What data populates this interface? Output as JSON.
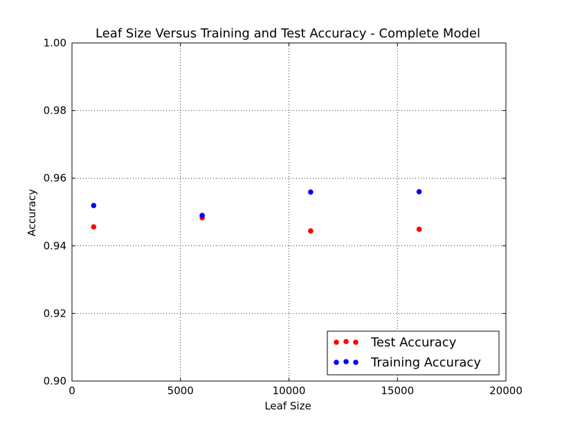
{
  "chart_data": {
    "type": "scatter",
    "title": "Leaf Size Versus Training and Test Accuracy - Complete Model",
    "xlabel": "Leaf Size",
    "ylabel": "Accuracy",
    "xlim": [
      0,
      20000
    ],
    "ylim": [
      0.9,
      1.0
    ],
    "x_ticks": [
      0,
      5000,
      10000,
      15000,
      20000
    ],
    "x_tick_labels": [
      "0",
      "5000",
      "10000",
      "15000",
      "20000"
    ],
    "y_ticks": [
      0.9,
      0.92,
      0.94,
      0.96,
      0.98,
      1.0
    ],
    "y_tick_labels": [
      "0.90",
      "0.92",
      "0.94",
      "0.96",
      "0.98",
      "1.00"
    ],
    "grid": true,
    "legend_position": "bottom-right",
    "series": [
      {
        "name": "Test Accuracy",
        "color": "#ff0000",
        "points": [
          {
            "x": 1000,
            "y": 0.9456
          },
          {
            "x": 6000,
            "y": 0.9483
          },
          {
            "x": 11000,
            "y": 0.9444
          },
          {
            "x": 16000,
            "y": 0.9449
          }
        ]
      },
      {
        "name": "Training Accuracy",
        "color": "#0000ff",
        "points": [
          {
            "x": 1000,
            "y": 0.9519
          },
          {
            "x": 6000,
            "y": 0.949
          },
          {
            "x": 11000,
            "y": 0.9559
          },
          {
            "x": 16000,
            "y": 0.956
          }
        ]
      }
    ]
  }
}
